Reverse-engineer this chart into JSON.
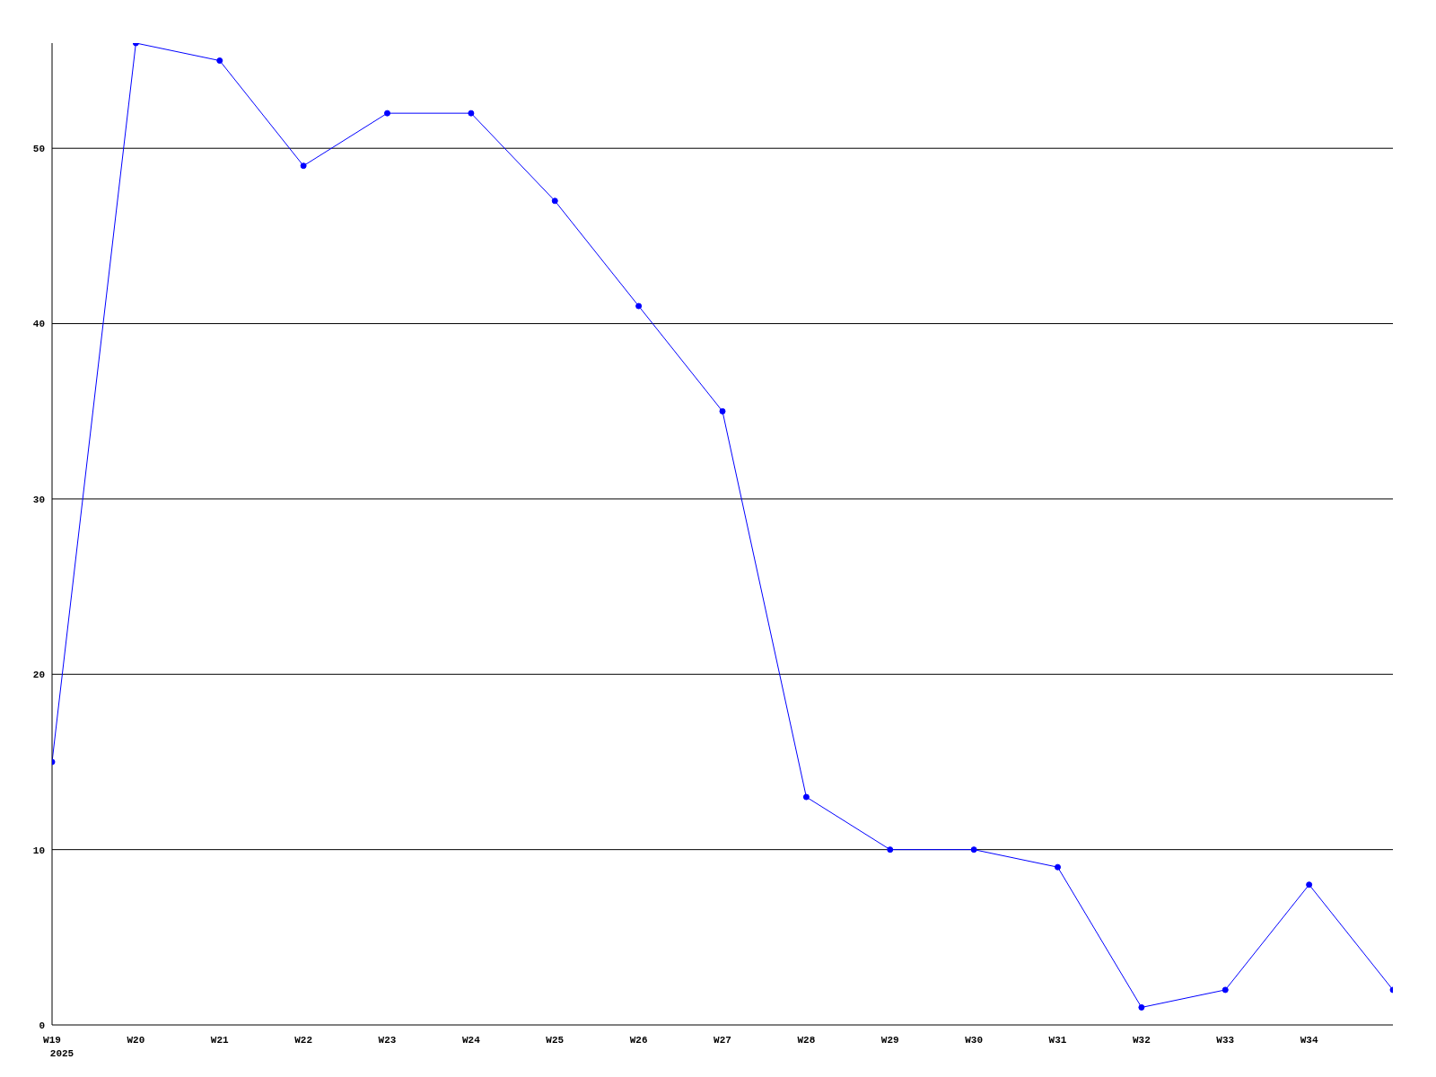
{
  "chart_data": {
    "type": "line",
    "categories": [
      "W19\n2025",
      "W20",
      "W21",
      "W22",
      "W23",
      "W24",
      "W25",
      "W26",
      "W27",
      "W28",
      "W29",
      "W30",
      "W31",
      "W32",
      "W33",
      "W34",
      null
    ],
    "series": [
      {
        "color": "#0000ff",
        "values": [
          15,
          56,
          55,
          49,
          52,
          52,
          47,
          41,
          35,
          13,
          10,
          10,
          9,
          1,
          2,
          8,
          2
        ]
      }
    ],
    "ylim": [
      0,
      56
    ],
    "yticks": [
      0,
      10,
      20,
      30,
      40,
      50
    ],
    "grid": "y",
    "marker": "circle",
    "line_style": "solid"
  }
}
